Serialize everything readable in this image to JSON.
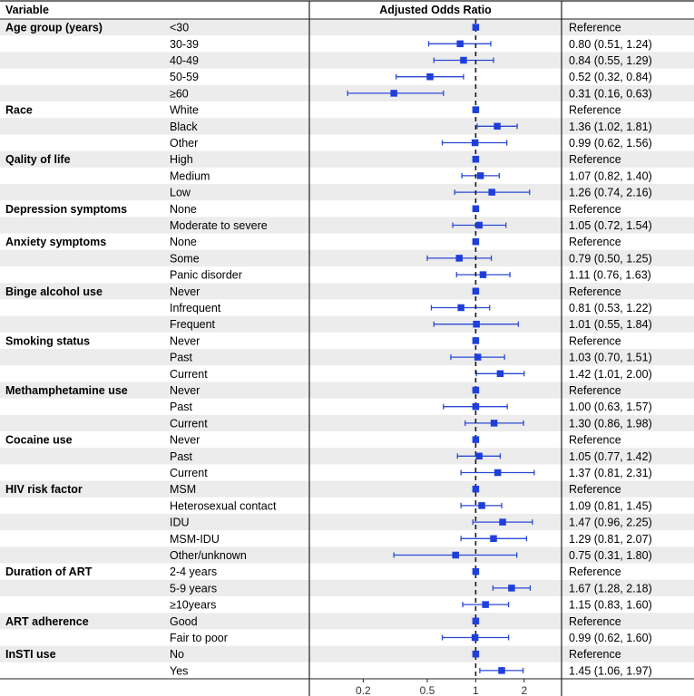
{
  "chart_data": {
    "type": "forest",
    "headers": {
      "variable": "Variable",
      "plot": "Adjusted Odds Ratio",
      "estimate": ""
    },
    "x_scale": "log",
    "xlim": [
      0.1,
      3.2
    ],
    "reference_line": 1,
    "x_ticks": [
      {
        "value": 0.2,
        "label": "0.2"
      },
      {
        "value": 0.5,
        "label": "0.5"
      },
      {
        "value": 1,
        "label": "1"
      },
      {
        "value": 2,
        "label": "2"
      }
    ],
    "colors": {
      "point": "#1f3fdb",
      "ci": "#2a4ad6",
      "ref": "#1a1a1a",
      "stripe": "#ececec",
      "rule": "#222222"
    },
    "rows": [
      {
        "group": "Age group (years)",
        "level": "<30",
        "or": 1,
        "lo": 1,
        "hi": 1,
        "text": "Reference"
      },
      {
        "group": "",
        "level": "30-39",
        "or": 0.8,
        "lo": 0.51,
        "hi": 1.24,
        "text": "0.80 (0.51, 1.24)"
      },
      {
        "group": "",
        "level": "40-49",
        "or": 0.84,
        "lo": 0.55,
        "hi": 1.29,
        "text": "0.84 (0.55, 1.29)"
      },
      {
        "group": "",
        "level": "50-59",
        "or": 0.52,
        "lo": 0.32,
        "hi": 0.84,
        "text": "0.52 (0.32, 0.84)"
      },
      {
        "group": "",
        "level": "≥60",
        "or": 0.31,
        "lo": 0.16,
        "hi": 0.63,
        "text": "0.31 (0.16, 0.63)"
      },
      {
        "group": "Race",
        "level": "White",
        "or": 1,
        "lo": 1,
        "hi": 1,
        "text": "Reference"
      },
      {
        "group": "",
        "level": "Black",
        "or": 1.36,
        "lo": 1.02,
        "hi": 1.81,
        "text": "1.36 (1.02, 1.81)"
      },
      {
        "group": "",
        "level": "Other",
        "or": 0.99,
        "lo": 0.62,
        "hi": 1.56,
        "text": "0.99 (0.62, 1.56)"
      },
      {
        "group": "Qality of life",
        "level": "High",
        "or": 1,
        "lo": 1,
        "hi": 1,
        "text": "Reference"
      },
      {
        "group": "",
        "level": "Medium",
        "or": 1.07,
        "lo": 0.82,
        "hi": 1.4,
        "text": "1.07 (0.82, 1.40)"
      },
      {
        "group": "",
        "level": "Low",
        "or": 1.26,
        "lo": 0.74,
        "hi": 2.16,
        "text": "1.26 (0.74, 2.16)"
      },
      {
        "group": "Depression symptoms",
        "level": "None",
        "or": 1,
        "lo": 1,
        "hi": 1,
        "text": "Reference"
      },
      {
        "group": "",
        "level": "Moderate to severe",
        "or": 1.05,
        "lo": 0.72,
        "hi": 1.54,
        "text": "1.05 (0.72, 1.54)"
      },
      {
        "group": "Anxiety symptoms",
        "level": "None",
        "or": 1,
        "lo": 1,
        "hi": 1,
        "text": "Reference"
      },
      {
        "group": "",
        "level": "Some",
        "or": 0.79,
        "lo": 0.5,
        "hi": 1.25,
        "text": "0.79 (0.50, 1.25)"
      },
      {
        "group": "",
        "level": "Panic disorder",
        "or": 1.11,
        "lo": 0.76,
        "hi": 1.63,
        "text": "1.11 (0.76, 1.63)"
      },
      {
        "group": "Binge alcohol use",
        "level": "Never",
        "or": 1,
        "lo": 1,
        "hi": 1,
        "text": "Reference"
      },
      {
        "group": "",
        "level": "Infrequent",
        "or": 0.81,
        "lo": 0.53,
        "hi": 1.22,
        "text": "0.81 (0.53, 1.22)"
      },
      {
        "group": "",
        "level": "Frequent",
        "or": 1.01,
        "lo": 0.55,
        "hi": 1.84,
        "text": "1.01 (0.55, 1.84)"
      },
      {
        "group": "Smoking status",
        "level": "Never",
        "or": 1,
        "lo": 1,
        "hi": 1,
        "text": "Reference"
      },
      {
        "group": "",
        "level": "Past",
        "or": 1.03,
        "lo": 0.7,
        "hi": 1.51,
        "text": "1.03 (0.70, 1.51)"
      },
      {
        "group": "",
        "level": "Current",
        "or": 1.42,
        "lo": 1.01,
        "hi": 2.0,
        "text": "1.42 (1.01, 2.00)"
      },
      {
        "group": "Methamphetamine use",
        "level": "Never",
        "or": 1,
        "lo": 1,
        "hi": 1,
        "text": "Reference"
      },
      {
        "group": "",
        "level": "Past",
        "or": 1.0,
        "lo": 0.63,
        "hi": 1.57,
        "text": "1.00 (0.63, 1.57)"
      },
      {
        "group": "",
        "level": "Current",
        "or": 1.3,
        "lo": 0.86,
        "hi": 1.98,
        "text": "1.30 (0.86, 1.98)"
      },
      {
        "group": "Cocaine use",
        "level": "Never",
        "or": 1,
        "lo": 1,
        "hi": 1,
        "text": "Reference"
      },
      {
        "group": "",
        "level": "Past",
        "or": 1.05,
        "lo": 0.77,
        "hi": 1.42,
        "text": "1.05 (0.77, 1.42)"
      },
      {
        "group": "",
        "level": "Current",
        "or": 1.37,
        "lo": 0.81,
        "hi": 2.31,
        "text": "1.37 (0.81, 2.31)"
      },
      {
        "group": "HIV risk factor",
        "level": "MSM",
        "or": 1,
        "lo": 1,
        "hi": 1,
        "text": "Reference"
      },
      {
        "group": "",
        "level": "Heterosexual contact",
        "or": 1.09,
        "lo": 0.81,
        "hi": 1.45,
        "text": "1.09 (0.81, 1.45)"
      },
      {
        "group": "",
        "level": "IDU",
        "or": 1.47,
        "lo": 0.96,
        "hi": 2.25,
        "text": "1.47 (0.96, 2.25)"
      },
      {
        "group": "",
        "level": "MSM-IDU",
        "or": 1.29,
        "lo": 0.81,
        "hi": 2.07,
        "text": "1.29 (0.81, 2.07)"
      },
      {
        "group": "",
        "level": "Other/unknown",
        "or": 0.75,
        "lo": 0.31,
        "hi": 1.8,
        "text": "0.75 (0.31, 1.80)"
      },
      {
        "group": "Duration of ART",
        "level": "2-4 years",
        "or": 1,
        "lo": 1,
        "hi": 1,
        "text": "Reference"
      },
      {
        "group": "",
        "level": "5-9 years",
        "or": 1.67,
        "lo": 1.28,
        "hi": 2.18,
        "text": "1.67 (1.28, 2.18)"
      },
      {
        "group": "",
        "level": "≥10years",
        "or": 1.15,
        "lo": 0.83,
        "hi": 1.6,
        "text": "1.15 (0.83, 1.60)"
      },
      {
        "group": "ART adherence",
        "level": "Good",
        "or": 1,
        "lo": 1,
        "hi": 1,
        "text": "Reference"
      },
      {
        "group": "",
        "level": "Fair to poor",
        "or": 0.99,
        "lo": 0.62,
        "hi": 1.6,
        "text": "0.99 (0.62, 1.60)"
      },
      {
        "group": "InSTI use",
        "level": "No",
        "or": 1,
        "lo": 1,
        "hi": 1,
        "text": "Reference"
      },
      {
        "group": "",
        "level": "Yes",
        "or": 1.45,
        "lo": 1.06,
        "hi": 1.97,
        "text": "1.45 (1.06, 1.97)"
      }
    ]
  }
}
